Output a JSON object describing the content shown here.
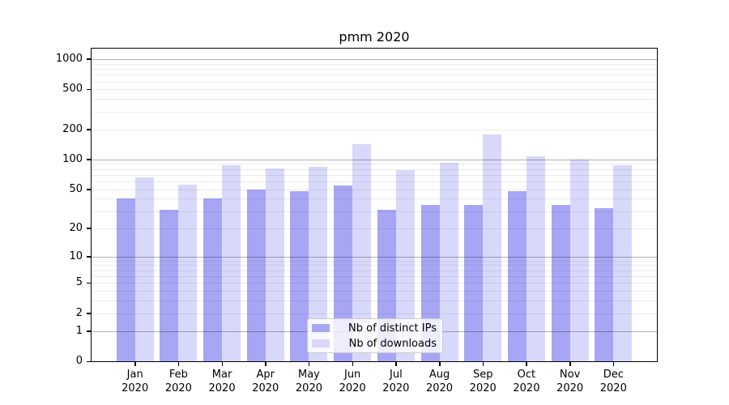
{
  "chart_data": {
    "type": "bar",
    "title": "pmm 2020",
    "categories": [
      "Jan",
      "Feb",
      "Mar",
      "Apr",
      "May",
      "Jun",
      "Jul",
      "Aug",
      "Sep",
      "Oct",
      "Nov",
      "Dec"
    ],
    "category_year": "2020",
    "series": [
      {
        "name": "Nb of distinct IPs",
        "color": "#a6a6f5",
        "values": [
          40,
          31,
          40,
          50,
          48,
          55,
          31,
          35,
          35,
          48,
          35,
          32
        ]
      },
      {
        "name": "Nb of downloads",
        "color": "#d8d8fa",
        "values": [
          66,
          56,
          87,
          81,
          84,
          142,
          78,
          93,
          178,
          107,
          100,
          87
        ]
      }
    ],
    "xlabel": "",
    "ylabel": "",
    "yscale": "log1p",
    "yticks": [
      0,
      1,
      2,
      5,
      10,
      20,
      50,
      100,
      200,
      500,
      1000
    ],
    "ylim": [
      0,
      1270
    ],
    "grid": "both",
    "legend_position": "lower center"
  },
  "colors": {
    "background": "#ffffff",
    "spine": "#000000",
    "major_grid": "rgba(0,0,0,0.30)",
    "minor_grid": "rgba(0,0,0,0.08)",
    "legend_border": "#cccccc",
    "legend_background": "rgba(255,255,255,0.8)"
  }
}
